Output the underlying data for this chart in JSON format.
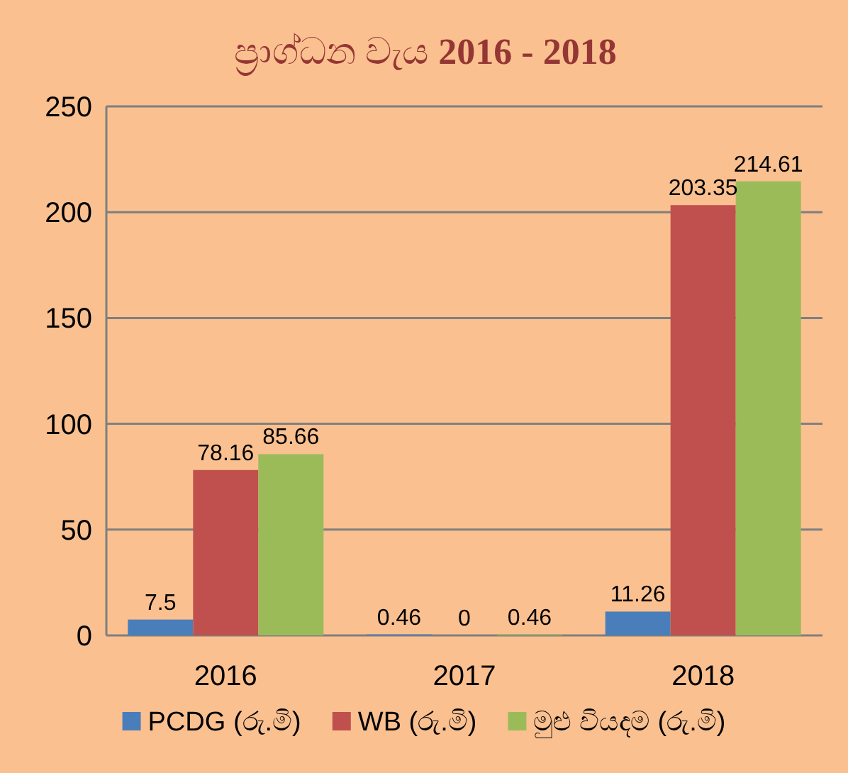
{
  "chart_data": {
    "type": "bar",
    "title": "ප්‍රාග්ධන වැය **2016 - 2018**",
    "categories": [
      "2016",
      "2017",
      "2018"
    ],
    "series": [
      {
        "name": "PCDG (රු.මි)",
        "color": "#4a7ebb",
        "values": [
          7.5,
          0.46,
          11.26
        ]
      },
      {
        "name": "WB (රු.මි)",
        "color": "#c0504d",
        "values": [
          78.16,
          0,
          203.35
        ]
      },
      {
        "name": "මුළු වියදම (රු.මි)",
        "color": "#9bbb59",
        "values": [
          85.66,
          0.46,
          214.61
        ]
      }
    ],
    "ylim": [
      0,
      250
    ],
    "yticks": [
      0,
      50,
      100,
      150,
      200,
      250
    ],
    "grid": "y",
    "legend": "bottom",
    "data_labels": true
  }
}
